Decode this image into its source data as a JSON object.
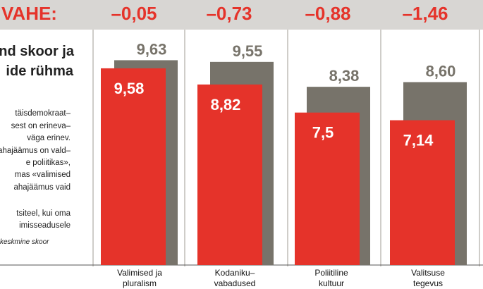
{
  "header": {
    "diff_label": "VAHE:",
    "diffs": [
      "–0,05",
      "–0,73",
      "–0,88",
      "–1,46"
    ]
  },
  "left_panel": {
    "title_lines": [
      "nd skoor ja",
      "ide rühma"
    ],
    "body_lines": [
      "täisdemokraat–",
      "sest on erineva–",
      "väga erinev.",
      "ahajäämus on vald–",
      "e poliitikas»,",
      "mas «valimised",
      "ahajäämus vaid",
      "",
      "tsiteel, kui oma",
      "imisseadusele"
    ],
    "note": "keskmine skoor"
  },
  "colors": {
    "red": "#e5332a",
    "grey": "#77736a",
    "header_bg": "#d8d6d3"
  },
  "chart_data": {
    "type": "bar",
    "categories": [
      [
        "Valimised ja",
        "pluralism"
      ],
      [
        "Kodaniku–",
        "vabadused"
      ],
      [
        "Poliitiline",
        "kultuur"
      ],
      [
        "Valitsuse",
        "tegevus"
      ]
    ],
    "series": [
      {
        "values": [
          9.63,
          9.55,
          8.38,
          8.6
        ],
        "labels": [
          "9,63",
          "9,55",
          "8,38",
          "8,60"
        ]
      },
      {
        "values": [
          9.58,
          8.82,
          7.5,
          7.14
        ],
        "labels": [
          "9,58",
          "8,82",
          "7,5",
          "7,14"
        ]
      }
    ],
    "differences": [
      -0.05,
      -0.73,
      -0.88,
      -1.46
    ],
    "ylim": [
      0,
      10.5
    ],
    "grid": false
  }
}
